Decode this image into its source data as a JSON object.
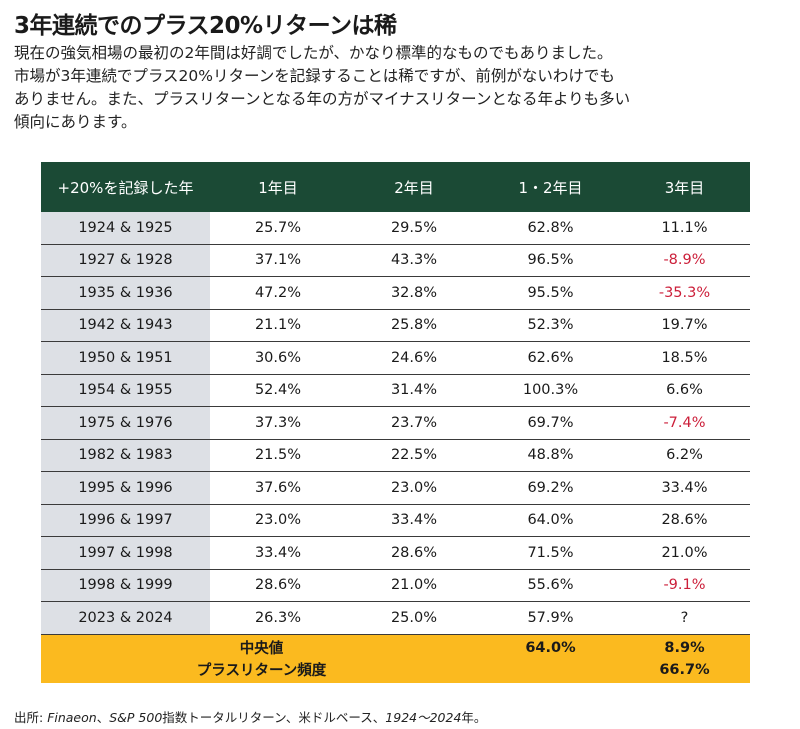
{
  "header": {
    "title": "3年連続でのプラス20%リターンは稀",
    "subtitle_lines": [
      "現在の強気相場の最初の2年間は好調でしたが、かなり標準的なものでもありました。",
      "市場が3年連続でプラス20%リターンを記録することは稀ですが、前例がないわけでも",
      "ありません。また、プラスリターンとなる年の方がマイナスリターンとなる年よりも多い",
      "傾向にあります。"
    ]
  },
  "table": {
    "columns": [
      "+20%を記録した年",
      "1年目",
      "2年目",
      "1・2年目",
      "3年目"
    ],
    "rows": [
      {
        "years": "1924 & 1925",
        "y1": "25.7%",
        "y2": "29.5%",
        "y12": "62.8%",
        "y3": "11.1%",
        "y3_negative": false
      },
      {
        "years": "1927 & 1928",
        "y1": "37.1%",
        "y2": "43.3%",
        "y12": "96.5%",
        "y3": "-8.9%",
        "y3_negative": true
      },
      {
        "years": "1935 & 1936",
        "y1": "47.2%",
        "y2": "32.8%",
        "y12": "95.5%",
        "y3": "-35.3%",
        "y3_negative": true
      },
      {
        "years": "1942 & 1943",
        "y1": "21.1%",
        "y2": "25.8%",
        "y12": "52.3%",
        "y3": "19.7%",
        "y3_negative": false
      },
      {
        "years": "1950 & 1951",
        "y1": "30.6%",
        "y2": "24.6%",
        "y12": "62.6%",
        "y3": "18.5%",
        "y3_negative": false
      },
      {
        "years": "1954 & 1955",
        "y1": "52.4%",
        "y2": "31.4%",
        "y12": "100.3%",
        "y3": "6.6%",
        "y3_negative": false
      },
      {
        "years": "1975 & 1976",
        "y1": "37.3%",
        "y2": "23.7%",
        "y12": "69.7%",
        "y3": "-7.4%",
        "y3_negative": true
      },
      {
        "years": "1982 & 1983",
        "y1": "21.5%",
        "y2": "22.5%",
        "y12": "48.8%",
        "y3": "6.2%",
        "y3_negative": false
      },
      {
        "years": "1995 & 1996",
        "y1": "37.6%",
        "y2": "23.0%",
        "y12": "69.2%",
        "y3": "33.4%",
        "y3_negative": false
      },
      {
        "years": "1996 & 1997",
        "y1": "23.0%",
        "y2": "33.4%",
        "y12": "64.0%",
        "y3": "28.6%",
        "y3_negative": false
      },
      {
        "years": "1997 & 1998",
        "y1": "33.4%",
        "y2": "28.6%",
        "y12": "71.5%",
        "y3": "21.0%",
        "y3_negative": false
      },
      {
        "years": "1998 & 1999",
        "y1": "28.6%",
        "y2": "21.0%",
        "y12": "55.6%",
        "y3": "-9.1%",
        "y3_negative": true
      },
      {
        "years": "2023 & 2024",
        "y1": "26.3%",
        "y2": "25.0%",
        "y12": "57.9%",
        "y3": "?",
        "y3_negative": false
      }
    ],
    "summary": {
      "median_label": "中央値",
      "median_y12": "64.0%",
      "median_y3": "8.9%",
      "positive_freq_label": "プラスリターン頻度",
      "positive_freq_y3": "66.7%"
    },
    "colors": {
      "header_bg": "#1b4a35",
      "year_cell_bg": "#dde0e5",
      "summary_bg": "#fbba1f",
      "negative_text": "#cc1f3a"
    }
  },
  "footer": {
    "source_label": "出所: ",
    "source_italic_1": "Finaeon",
    "source_text_1": "、",
    "source_italic_2": "S&P 500",
    "source_text_2": "指数トータルリターン、米ドルベース、",
    "source_italic_3": "1924～2024",
    "source_text_3": "年。"
  }
}
